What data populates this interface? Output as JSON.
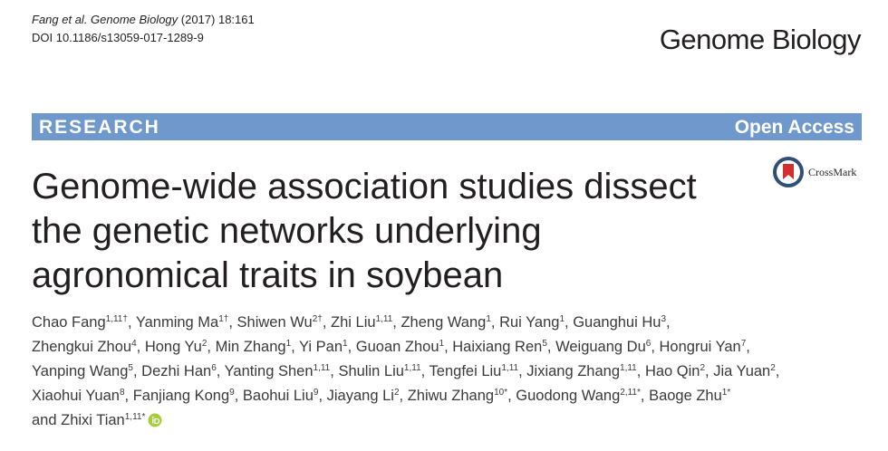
{
  "header": {
    "citation": [
      "Fang et al. Genome Biology",
      " (2017) 18:161"
    ],
    "doi": "DOI 10.1186/s13059-017-1289-9",
    "journal": "Genome Biology"
  },
  "banner": {
    "left": "RESEARCH",
    "right": "Open Access"
  },
  "crossmark": "CrossMark",
  "title": [
    "Genome-wide association studies dissect",
    "the genetic networks underlying",
    "agronomical traits in soybean"
  ],
  "author_lines": [
    [
      {
        "name": "Chao Fang",
        "sup": "1,11†",
        "sep": ","
      },
      {
        "name": "Yanming Ma",
        "sup": "1†",
        "sep": ","
      },
      {
        "name": "Shiwen Wu",
        "sup": "2†",
        "sep": ","
      },
      {
        "name": "Zhi Liu",
        "sup": "1,11",
        "sep": ","
      },
      {
        "name": "Zheng Wang",
        "sup": "1",
        "sep": ","
      },
      {
        "name": "Rui Yang",
        "sup": "1",
        "sep": ","
      },
      {
        "name": "Guanghui Hu",
        "sup": "3",
        "sep": ","
      }
    ],
    [
      {
        "name": "Zhengkui Zhou",
        "sup": "4",
        "sep": ","
      },
      {
        "name": "Hong Yu",
        "sup": "2",
        "sep": ","
      },
      {
        "name": "Min Zhang",
        "sup": "1",
        "sep": ","
      },
      {
        "name": "Yi Pan",
        "sup": "1",
        "sep": ","
      },
      {
        "name": "Guoan Zhou",
        "sup": "1",
        "sep": ","
      },
      {
        "name": "Haixiang Ren",
        "sup": "5",
        "sep": ","
      },
      {
        "name": "Weiguang Du",
        "sup": "6",
        "sep": ","
      },
      {
        "name": "Hongrui Yan",
        "sup": "7",
        "sep": ","
      }
    ],
    [
      {
        "name": "Yanping Wang",
        "sup": "5",
        "sep": ","
      },
      {
        "name": "Dezhi Han",
        "sup": "6",
        "sep": ","
      },
      {
        "name": "Yanting Shen",
        "sup": "1,11",
        "sep": ","
      },
      {
        "name": "Shulin Liu",
        "sup": "1,11",
        "sep": ","
      },
      {
        "name": "Tengfei Liu",
        "sup": "1,11",
        "sep": ","
      },
      {
        "name": "Jixiang Zhang",
        "sup": "1,11",
        "sep": ","
      },
      {
        "name": "Hao Qin",
        "sup": "2",
        "sep": ","
      },
      {
        "name": "Jia Yuan",
        "sup": "2",
        "sep": ","
      }
    ],
    [
      {
        "name": "Xiaohui Yuan",
        "sup": "8",
        "sep": ","
      },
      {
        "name": "Fanjiang Kong",
        "sup": "9",
        "sep": ","
      },
      {
        "name": "Baohui Liu",
        "sup": "9",
        "sep": ","
      },
      {
        "name": "Jiayang Li",
        "sup": "2",
        "sep": ","
      },
      {
        "name": "Zhiwu Zhang",
        "sup": "10*",
        "sep": ","
      },
      {
        "name": "Guodong Wang",
        "sup": "2,11*",
        "sep": ","
      },
      {
        "name": "Baoge Zhu",
        "sup": "1*"
      }
    ],
    [
      {
        "name": "and Zhixi Tian",
        "sup": "1,11*"
      }
    ]
  ]
}
